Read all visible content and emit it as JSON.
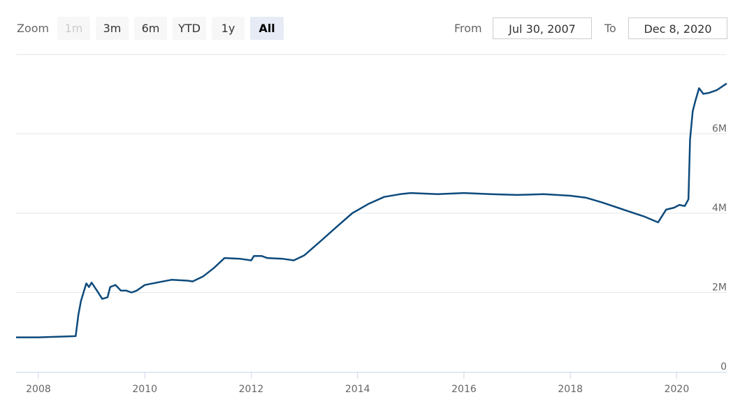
{
  "range_selector": {
    "zoom_label": "Zoom",
    "buttons": [
      "1m",
      "3m",
      "6m",
      "YTD",
      "1y",
      "All"
    ],
    "from_label": "From",
    "from": "Jul 30, 2007",
    "to_label": "To",
    "to": "Dec 8, 2020"
  },
  "chart_data": {
    "type": "line",
    "color": "#0d4a7c",
    "grid": true,
    "x": [
      2007.58,
      2008.0,
      2008.7,
      2008.75,
      2008.8,
      2008.9,
      2008.95,
      2009.0,
      2009.1,
      2009.2,
      2009.3,
      2009.35,
      2009.45,
      2009.55,
      2009.65,
      2009.75,
      2009.85,
      2010.0,
      2010.3,
      2010.5,
      2010.8,
      2010.9,
      2011.1,
      2011.3,
      2011.5,
      2011.8,
      2012.0,
      2012.05,
      2012.2,
      2012.3,
      2012.6,
      2012.8,
      2013.0,
      2013.3,
      2013.6,
      2013.9,
      2014.2,
      2014.5,
      2014.8,
      2015.0,
      2015.5,
      2016.0,
      2016.5,
      2017.0,
      2017.5,
      2018.0,
      2018.3,
      2018.6,
      2019.0,
      2019.4,
      2019.65,
      2019.8,
      2019.95,
      2020.05,
      2020.15,
      2020.22,
      2020.25,
      2020.3,
      2020.35,
      2020.42,
      2020.5,
      2020.6,
      2020.75,
      2020.94
    ],
    "values": [
      870000,
      870000,
      900000,
      1430000,
      1790000,
      2230000,
      2140000,
      2250000,
      2050000,
      1840000,
      1880000,
      2140000,
      2190000,
      2050000,
      2050000,
      2000000,
      2050000,
      2190000,
      2270000,
      2320000,
      2300000,
      2280000,
      2410000,
      2620000,
      2870000,
      2850000,
      2810000,
      2920000,
      2920000,
      2870000,
      2850000,
      2810000,
      2940000,
      3290000,
      3650000,
      4000000,
      4230000,
      4410000,
      4480000,
      4510000,
      4480000,
      4510000,
      4480000,
      4460000,
      4480000,
      4440000,
      4390000,
      4270000,
      4090000,
      3910000,
      3770000,
      4090000,
      4140000,
      4210000,
      4180000,
      4350000,
      5860000,
      6570000,
      6830000,
      7150000,
      7010000,
      7030000,
      7100000,
      7270000
    ],
    "xlim": [
      2007.58,
      2020.94
    ],
    "xticks": [
      2008,
      2010,
      2012,
      2014,
      2016,
      2018,
      2020
    ],
    "ylim": [
      0,
      8000000
    ],
    "yticks": [
      0,
      {
        "value": 2000000,
        "label": "2M"
      },
      {
        "value": 4000000,
        "label": "4M"
      },
      {
        "value": 6000000,
        "label": "6M"
      }
    ]
  }
}
